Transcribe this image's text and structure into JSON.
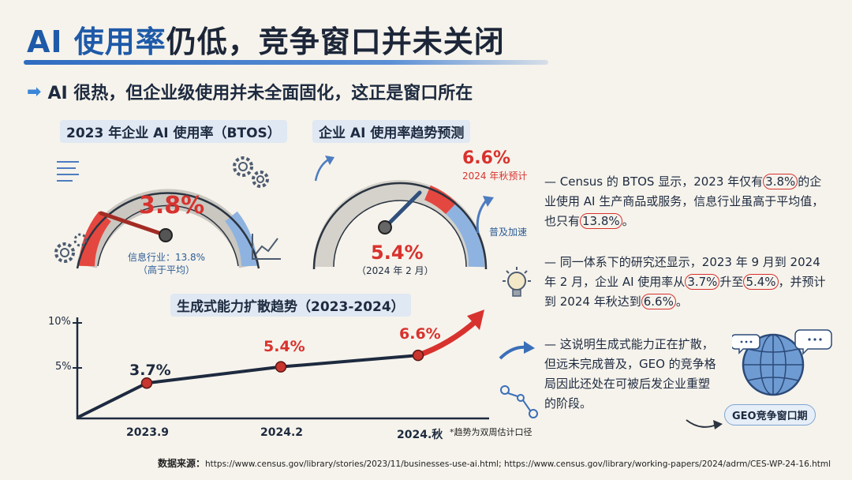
{
  "header": {
    "title_highlight": "AI 使用率",
    "title_rest": "仍低，竞争窗口并未关闭",
    "subtitle": "AI 很热，但企业级使用并未全面固化，这正是窗口所在"
  },
  "gauge_left": {
    "title": "2023 年企业 AI 使用率（BTOS）",
    "value_label": "3.8%",
    "value": 3.8,
    "note_line1": "信息行业：13.8%",
    "note_line2": "（高于平均）"
  },
  "gauge_right": {
    "title": "企业 AI 使用率趋势预测",
    "value_label": "5.4%",
    "value": 5.4,
    "date_label": "（2024 年 2 月）",
    "forecast_label": "6.6%",
    "forecast_value": 6.6,
    "forecast_note": "2024 年秋预计",
    "accel_note": "普及加速"
  },
  "bullets": [
    {
      "parts": [
        "— Census 的 BTOS 显示，2023 年仅有",
        "3.8%",
        "的企业使用 AI 生产商品或服务，信息行业虽高于平均值，也只有",
        "13.8%",
        "。"
      ]
    },
    {
      "parts": [
        "— 同一体系下的研究还显示，2023 年 9 月到 2024 年 2 月，企业 AI 使用率从",
        "3.7%",
        "升至",
        "5.4%",
        "，并预计到 2024 年秋达到",
        "6.6%",
        "。"
      ]
    },
    {
      "parts": [
        "— 这说明生成式能力正在扩散，但远未完成普及，GEO 的竞争格局因此还处在可被后发企业重塑的阶段。"
      ]
    }
  ],
  "globe_label": "GEO竞争窗口期",
  "footnote": "*趋势为双周估计口径",
  "source": {
    "label": "数据来源：",
    "text": "https://www.census.gov/library/stories/2023/11/businesses-use-ai.html;  https://www.census.gov/library/working-papers/2024/adrm/CES-WP-24-16.html"
  },
  "colors": {
    "accent_blue": "#2f6cc0",
    "accent_red": "#d8322e",
    "gauge_blue": "#8fb3e0",
    "background": "#f6f3ec"
  },
  "chart_data": {
    "type": "line",
    "title": "生成式能力扩散趋势（2023-2024）",
    "categories": [
      "2023.9",
      "2024.2",
      "2024.秋"
    ],
    "series": [
      {
        "values": [
          3.7,
          5.4,
          6.6
        ]
      }
    ],
    "value_labels": [
      "3.7%",
      "5.4%",
      "6.6%"
    ],
    "y_ticks": [
      "5%",
      "10%"
    ],
    "ylim": [
      0,
      10
    ],
    "grid": false
  }
}
